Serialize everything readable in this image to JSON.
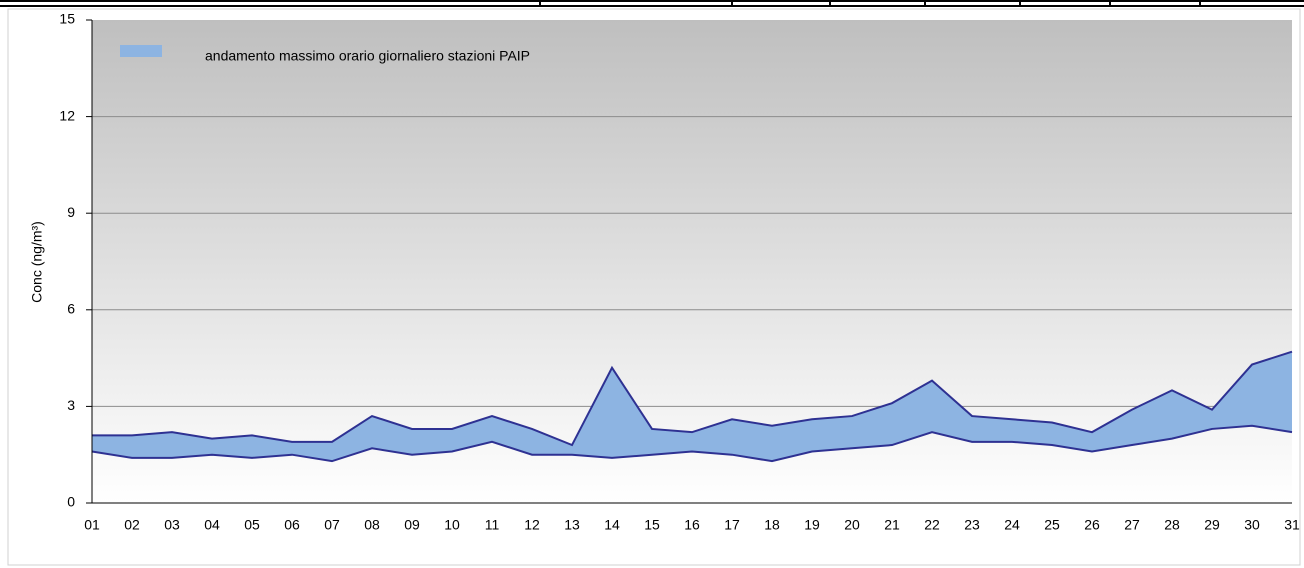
{
  "chart_data": {
    "type": "range_area",
    "y_label": "Conc (ng/m³)",
    "categories": [
      "01",
      "02",
      "03",
      "04",
      "05",
      "06",
      "07",
      "08",
      "09",
      "10",
      "11",
      "12",
      "13",
      "14",
      "15",
      "16",
      "17",
      "18",
      "19",
      "20",
      "21",
      "22",
      "23",
      "24",
      "25",
      "26",
      "27",
      "28",
      "29",
      "30",
      "31"
    ],
    "series": [
      {
        "name": "andamento massimo orario giornaliero stazioni PAIP",
        "color": "#8db4e2",
        "line_color": "#2e3192",
        "low": [
          1.6,
          1.4,
          1.4,
          1.5,
          1.4,
          1.5,
          1.3,
          1.7,
          1.5,
          1.6,
          1.9,
          1.5,
          1.5,
          1.4,
          1.5,
          1.6,
          1.5,
          1.3,
          1.6,
          1.7,
          1.8,
          2.2,
          1.9,
          1.9,
          1.8,
          1.6,
          1.8,
          2.0,
          2.3,
          2.4,
          2.2
        ],
        "high": [
          2.1,
          2.1,
          2.2,
          2.0,
          2.1,
          1.9,
          1.9,
          2.7,
          2.3,
          2.3,
          2.7,
          2.3,
          1.8,
          4.2,
          2.3,
          2.2,
          2.6,
          2.4,
          2.6,
          2.7,
          3.1,
          3.8,
          2.7,
          2.6,
          2.5,
          2.2,
          2.9,
          3.5,
          2.9,
          4.3,
          4.7
        ]
      }
    ],
    "ylim": [
      0,
      15
    ],
    "yticks": [
      0,
      3,
      6,
      9,
      12,
      15
    ],
    "grid": true
  }
}
